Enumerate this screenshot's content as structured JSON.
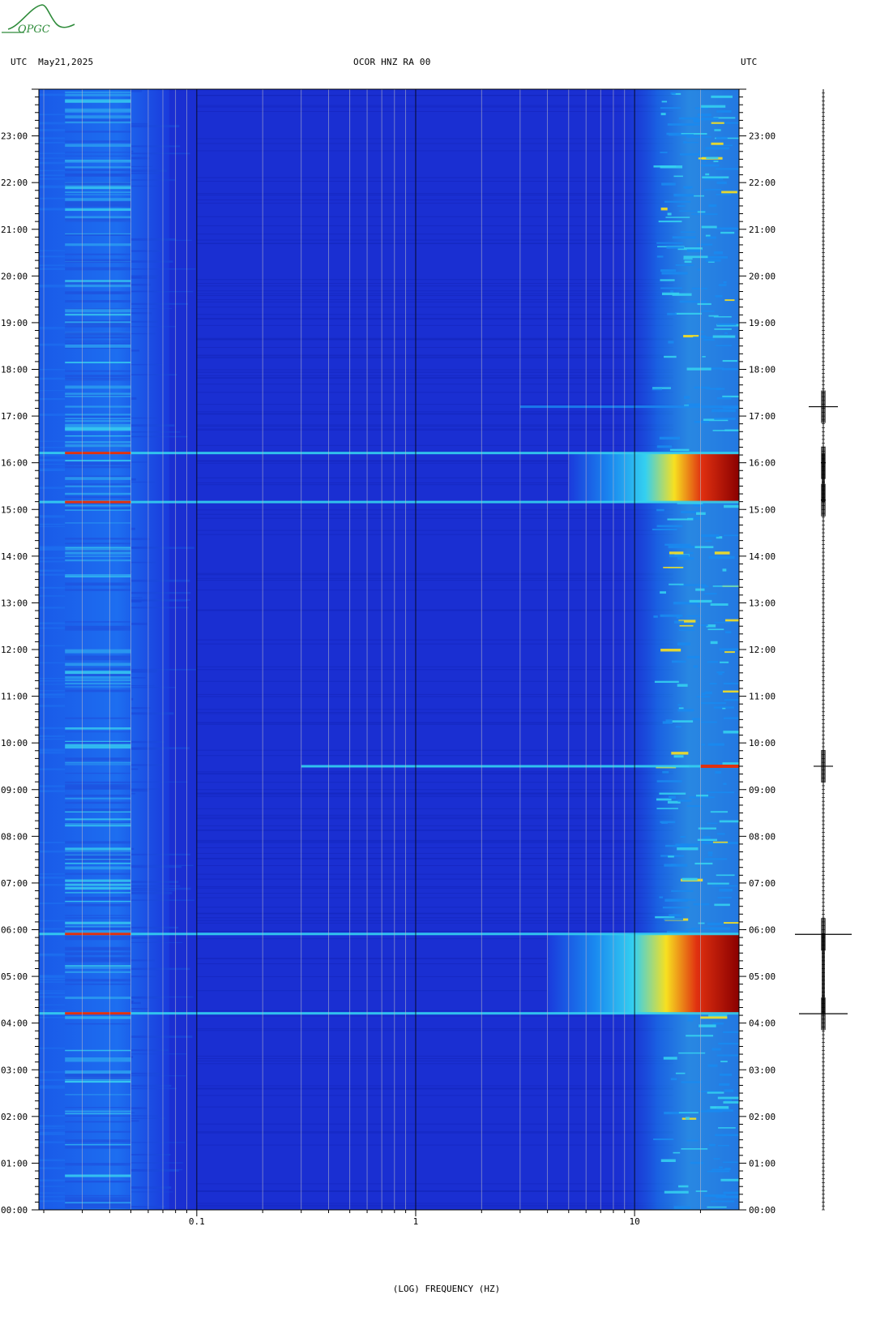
{
  "header": {
    "left_label": "UTC  May21,2025",
    "center_label": "OCOR HNZ RA 00",
    "right_label": "UTC"
  },
  "logo": {
    "text": "OPGC",
    "color": "#2e8b3a"
  },
  "chart_data": {
    "type": "heatmap",
    "title": "OCOR HNZ RA 00",
    "xlabel": "(LOG) FREQUENCY (HZ)",
    "x_scale": "log",
    "xlim": [
      0.019,
      30
    ],
    "x_ticks": [
      0.1,
      1,
      10
    ],
    "x_tick_labels": [
      "0.1",
      "1",
      "10"
    ],
    "y_ticks_hours": [
      0,
      1,
      2,
      3,
      4,
      5,
      6,
      7,
      8,
      9,
      10,
      11,
      12,
      13,
      14,
      15,
      16,
      17,
      18,
      19,
      20,
      21,
      22,
      23
    ],
    "y_tick_labels": [
      "00:00",
      "01:00",
      "02:00",
      "03:00",
      "04:00",
      "05:00",
      "06:00",
      "07:00",
      "08:00",
      "09:00",
      "10:00",
      "11:00",
      "12:00",
      "13:00",
      "14:00",
      "15:00",
      "16:00",
      "17:00",
      "18:00",
      "19:00",
      "20:00",
      "21:00",
      "22:00",
      "23:00"
    ],
    "ylim_hours": [
      0,
      24
    ],
    "colors": {
      "background": "#1a2fd2",
      "low": "#1420c8",
      "mid": "#1a8af0",
      "cyan": "#34d0f0",
      "yellow": "#f7e020",
      "red": "#e03010",
      "darkred": "#8a0000"
    },
    "events": [
      {
        "hour_start": 4.2,
        "hour_end": 5.9,
        "fmin_hz": 4,
        "intensity": "high"
      },
      {
        "hour_start": 15.15,
        "hour_end": 16.2,
        "fmin_hz": 5,
        "intensity": "high"
      },
      {
        "hour_start": 9.5,
        "hour_end": 9.5,
        "fmin_hz": 0.3,
        "intensity": "line"
      },
      {
        "hour_start": 17.2,
        "hour_end": 17.2,
        "fmin_hz": 3,
        "intensity": "weak"
      }
    ],
    "trace_events_hours": [
      4.2,
      5.9,
      9.5,
      15.2,
      16.0,
      17.2
    ]
  }
}
